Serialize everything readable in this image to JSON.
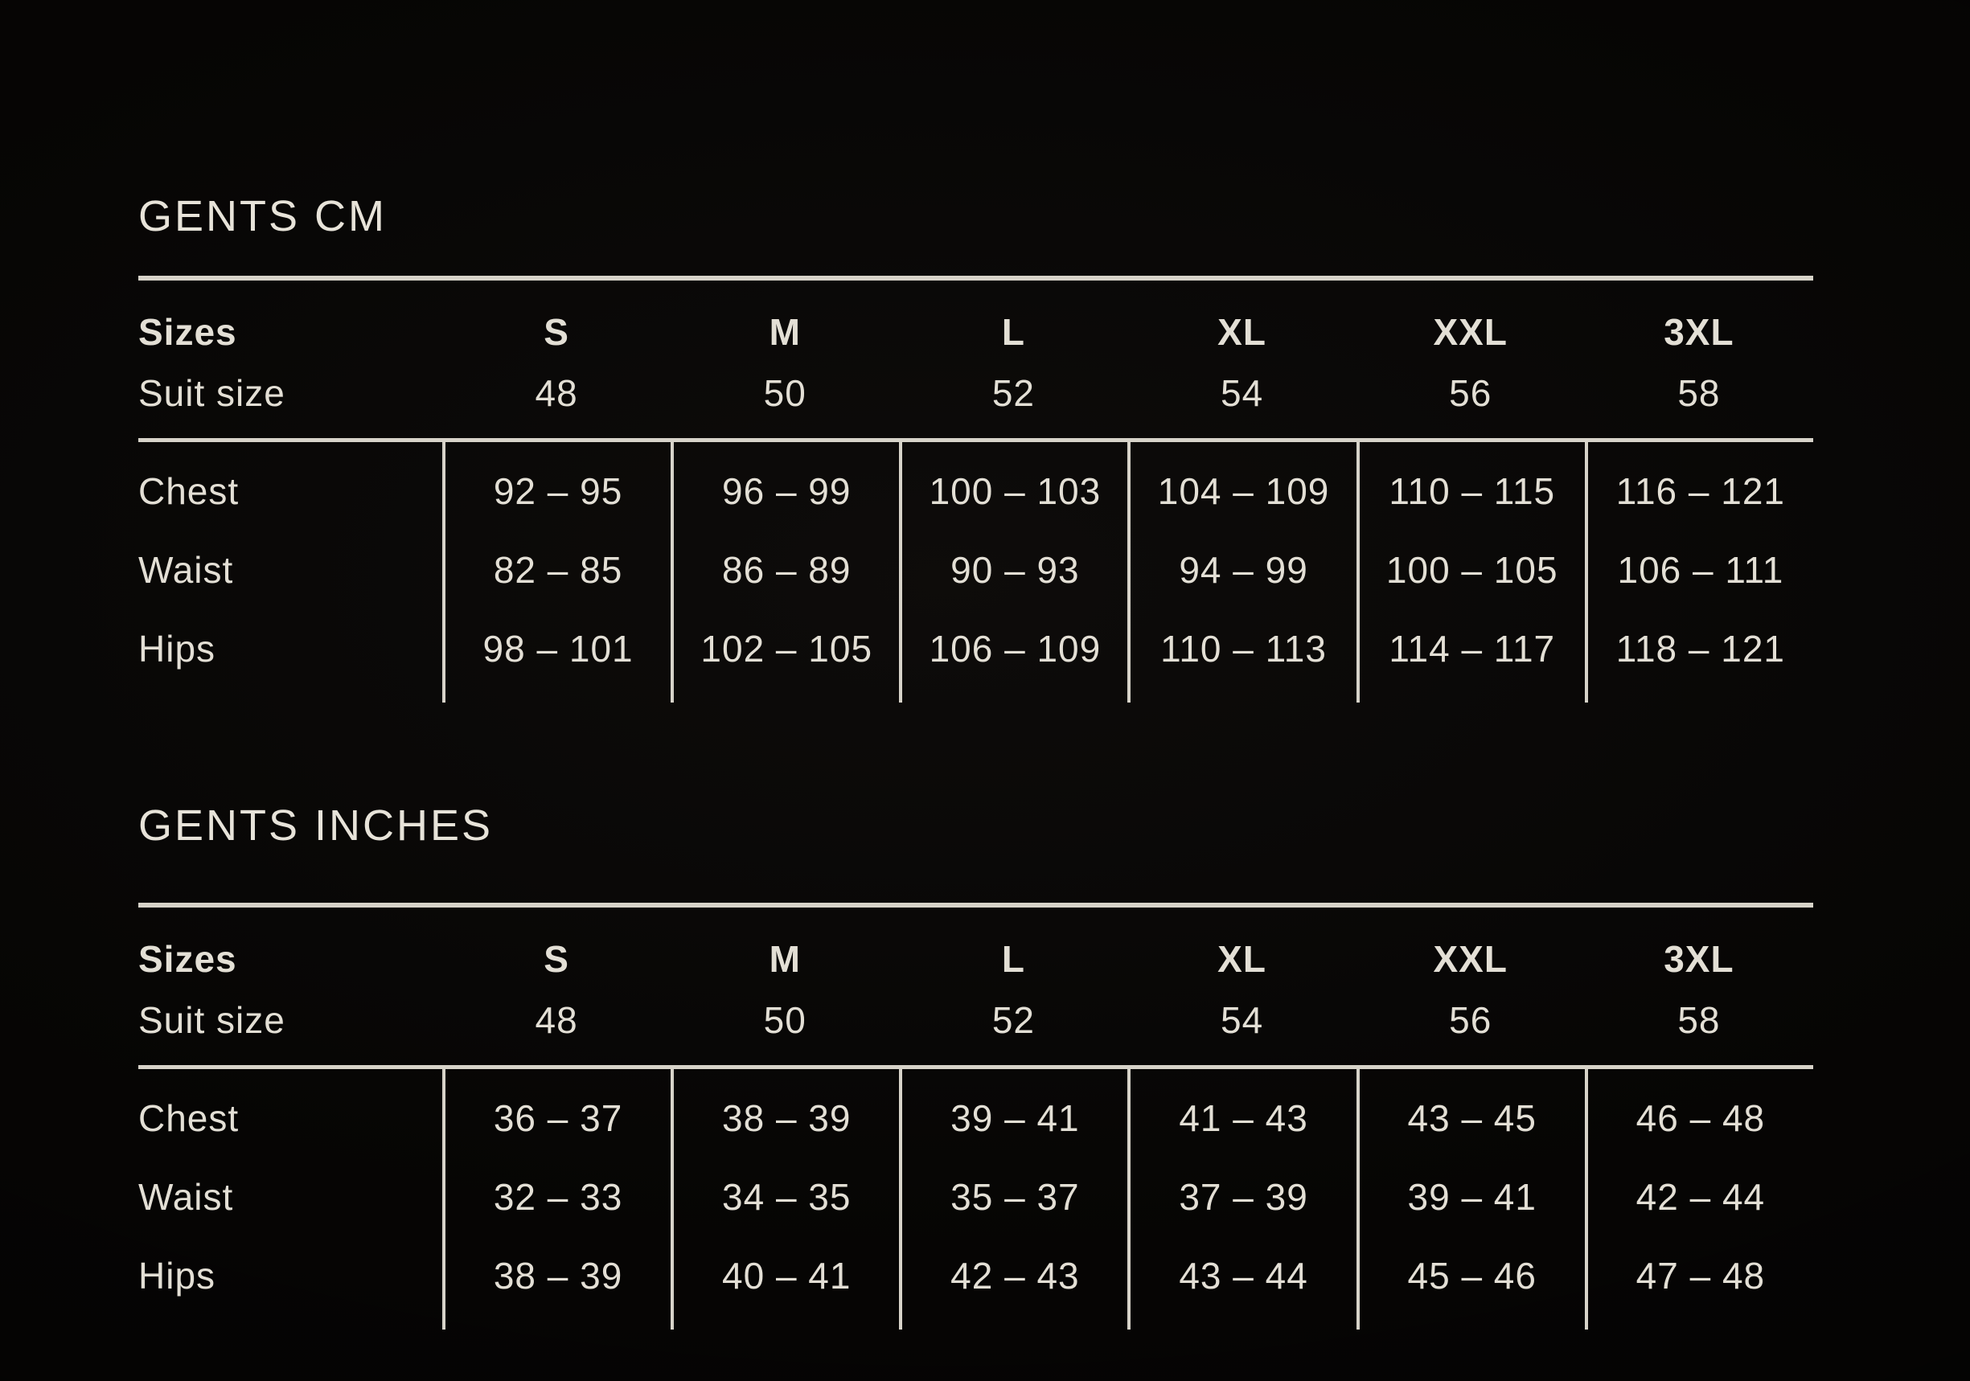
{
  "page": {
    "background_color": "#060504",
    "text_color": "#e3dfd5",
    "line_color": "#d7d3c9"
  },
  "chart_data": [
    {
      "type": "table",
      "title": "GENTS CM",
      "header": {
        "col0": "Sizes",
        "sizes": [
          "S",
          "M",
          "L",
          "XL",
          "XXL",
          "3XL"
        ],
        "suit_label": "Suit size",
        "suit_values": [
          "48",
          "50",
          "52",
          "54",
          "56",
          "58"
        ]
      },
      "rows": [
        {
          "label": "Chest",
          "values": [
            "92 – 95",
            "96 – 99",
            "100 – 103",
            "104 – 109",
            "110 – 115",
            "116 – 121"
          ]
        },
        {
          "label": "Waist",
          "values": [
            "82 – 85",
            "86 – 89",
            "90 – 93",
            "94 – 99",
            "100 – 105",
            "106 – 111"
          ]
        },
        {
          "label": "Hips",
          "values": [
            "98 – 101",
            "102 – 105",
            "106 – 109",
            "110 – 113",
            "114 – 117",
            "118 – 121"
          ]
        }
      ]
    },
    {
      "type": "table",
      "title": "GENTS INCHES",
      "header": {
        "col0": "Sizes",
        "sizes": [
          "S",
          "M",
          "L",
          "XL",
          "XXL",
          "3XL"
        ],
        "suit_label": "Suit size",
        "suit_values": [
          "48",
          "50",
          "52",
          "54",
          "56",
          "58"
        ]
      },
      "rows": [
        {
          "label": "Chest",
          "values": [
            "36 – 37",
            "38 – 39",
            "39 – 41",
            "41 – 43",
            "43 – 45",
            "46 – 48"
          ]
        },
        {
          "label": "Waist",
          "values": [
            "32 – 33",
            "34 – 35",
            "35 – 37",
            "37 – 39",
            "39 – 41",
            "42 – 44"
          ]
        },
        {
          "label": "Hips",
          "values": [
            "38 – 39",
            "40 – 41",
            "42 – 43",
            "43 – 44",
            "45 – 46",
            "47 – 48"
          ]
        }
      ]
    }
  ]
}
